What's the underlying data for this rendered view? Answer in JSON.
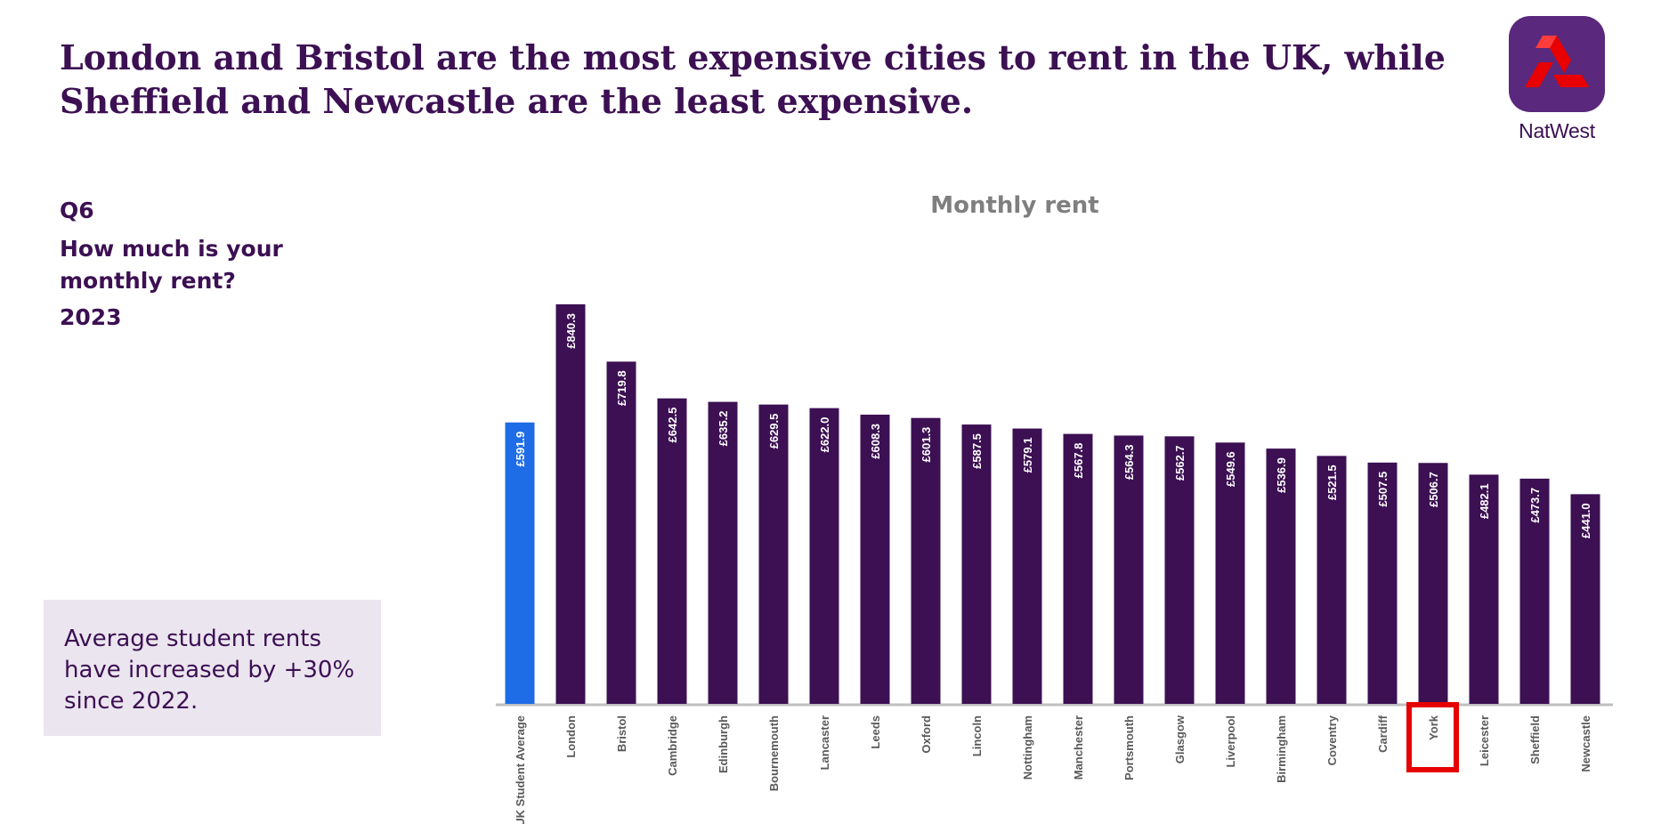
{
  "header": {
    "title_line1": "London and Bristol are the most expensive cities to rent in the UK, while",
    "title_line2": "Sheffield and Newcastle are the least expensive."
  },
  "logo": {
    "name": "NatWest",
    "icon": "natwest-chevrons-icon",
    "bg_color": "#5a287d",
    "mark_color": "#e90000"
  },
  "question": {
    "code": "Q6",
    "text": "How much is your monthly rent?",
    "year": "2023"
  },
  "callout": {
    "text": "Average student rents have increased by +30% since 2022."
  },
  "chart_data": {
    "type": "bar",
    "title": "Monthly rent",
    "xlabel": "",
    "ylabel": "",
    "ylim": [
      0,
      840.3
    ],
    "grid": false,
    "categories": [
      "UK Student Average",
      "London",
      "Bristol",
      "Cambridge",
      "Edinburgh",
      "Bournemouth",
      "Lancaster",
      "Leeds",
      "Oxford",
      "Lincoln",
      "Nottingham",
      "Manchester",
      "Portsmouth",
      "Glasgow",
      "Liverpool",
      "Birmingham",
      "Coventry",
      "Cardiff",
      "York",
      "Leicester",
      "Sheffield",
      "Newcastle"
    ],
    "values": [
      591.9,
      840.3,
      719.8,
      642.5,
      635.2,
      629.5,
      622.0,
      608.3,
      601.3,
      587.5,
      579.1,
      567.8,
      564.3,
      562.7,
      549.6,
      536.9,
      521.5,
      507.5,
      506.7,
      482.1,
      473.7,
      441.0
    ],
    "data_labels": [
      "£591.9",
      "£840.3",
      "£719.8",
      "£642.5",
      "£635.2",
      "£629.5",
      "£622.0",
      "£608.3",
      "£601.3",
      "£587.5",
      "£579.1",
      "£567.8",
      "£564.3",
      "£562.7",
      "£549.6",
      "£536.9",
      "£521.5",
      "£507.5",
      "£506.7",
      "£482.1",
      "£473.7",
      "£441.0"
    ],
    "highlighted_category": "York",
    "colors": {
      "average_bar": "#1e6ce6",
      "city_bar": "#3c1053",
      "highlight_box": "#e60000",
      "label": "#ffffff",
      "axis": "#bfbfbf",
      "tick_text": "#595959"
    }
  }
}
